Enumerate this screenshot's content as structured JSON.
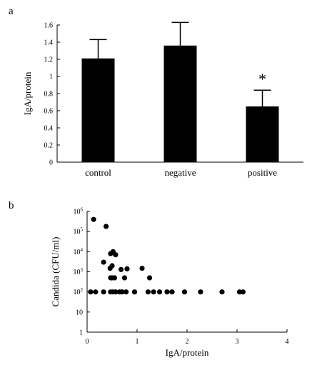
{
  "chart_data": [
    {
      "panel": "a",
      "type": "bar",
      "categories": [
        "control",
        "negative",
        "positive"
      ],
      "values": [
        1.21,
        1.36,
        0.65
      ],
      "errors": [
        0.22,
        0.27,
        0.19
      ],
      "annotations": [
        {
          "category": "positive",
          "text": "*"
        }
      ],
      "ylabel": "IgA/protein",
      "ylim": [
        0,
        1.6
      ],
      "yticks": [
        "0",
        "0.2",
        "0.4",
        "0.6",
        "0.8",
        "1",
        "1.2",
        "1.4",
        "1.6"
      ],
      "bar_color": "#000000"
    },
    {
      "panel": "b",
      "type": "scatter",
      "xlabel": "IgA/protein",
      "ylabel": "Candida (CFU/ml)",
      "xlim": [
        0,
        4
      ],
      "xticks": [
        "0",
        "1",
        "2",
        "3",
        "4"
      ],
      "yscale": "log",
      "ylim": [
        1,
        1000000
      ],
      "yticks": [
        {
          "base": "1",
          "exp": ""
        },
        {
          "base": "10",
          "exp": ""
        },
        {
          "base": "10",
          "exp": "2"
        },
        {
          "base": "10",
          "exp": "3"
        },
        {
          "base": "10",
          "exp": "4"
        },
        {
          "base": "10",
          "exp": "5"
        },
        {
          "base": "10",
          "exp": "6"
        }
      ],
      "points": [
        [
          0.13,
          400000
        ],
        [
          0.38,
          180000
        ],
        [
          0.33,
          3000
        ],
        [
          0.47,
          8000
        ],
        [
          0.52,
          10000
        ],
        [
          0.57,
          7000
        ],
        [
          0.46,
          1500
        ],
        [
          0.5,
          2000
        ],
        [
          0.68,
          1300
        ],
        [
          0.8,
          1400
        ],
        [
          1.1,
          1500
        ],
        [
          0.47,
          500
        ],
        [
          0.5,
          500
        ],
        [
          0.55,
          500
        ],
        [
          0.75,
          500
        ],
        [
          1.25,
          500
        ],
        [
          0.07,
          100
        ],
        [
          0.17,
          100
        ],
        [
          0.33,
          100
        ],
        [
          0.47,
          100
        ],
        [
          0.52,
          100
        ],
        [
          0.57,
          100
        ],
        [
          0.65,
          100
        ],
        [
          0.7,
          100
        ],
        [
          0.78,
          100
        ],
        [
          0.95,
          100
        ],
        [
          1.22,
          100
        ],
        [
          1.33,
          100
        ],
        [
          1.45,
          100
        ],
        [
          1.6,
          100
        ],
        [
          1.7,
          100
        ],
        [
          1.95,
          100
        ],
        [
          2.27,
          100
        ],
        [
          2.7,
          100
        ],
        [
          3.05,
          100
        ],
        [
          3.12,
          100
        ]
      ]
    }
  ],
  "labels": {
    "panel_a": "a",
    "panel_b": "b"
  }
}
